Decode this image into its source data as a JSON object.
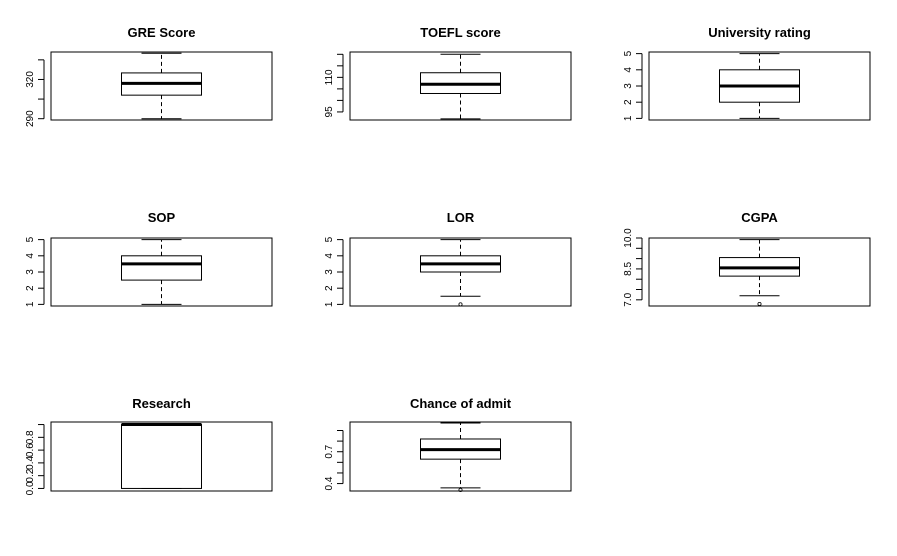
{
  "chart_data": [
    {
      "type": "box",
      "title": "GRE Score",
      "ylim": [
        289,
        341
      ],
      "ticks": [
        290,
        305,
        320,
        335
      ],
      "tick_labels": [
        "290",
        "",
        "320",
        ""
      ],
      "box": {
        "whisker_low": 290,
        "q1": 308,
        "median": 317,
        "q3": 325,
        "whisker_high": 340,
        "outliers": []
      }
    },
    {
      "type": "box",
      "title": "TOEFL score",
      "ylim": [
        91.5,
        121
      ],
      "ticks": [
        95,
        100,
        105,
        110,
        115,
        120
      ],
      "tick_labels": [
        "95",
        "",
        "",
        "110",
        "",
        ""
      ],
      "box": {
        "whisker_low": 92,
        "q1": 103,
        "median": 107,
        "q3": 112,
        "whisker_high": 120,
        "outliers": []
      }
    },
    {
      "type": "box",
      "title": "University rating",
      "ylim": [
        0.9,
        5.1
      ],
      "ticks": [
        1,
        2,
        3,
        4,
        5
      ],
      "tick_labels": [
        "1",
        "2",
        "3",
        "4",
        "5"
      ],
      "box": {
        "whisker_low": 1,
        "q1": 2,
        "median": 3,
        "q3": 4,
        "whisker_high": 5,
        "outliers": []
      }
    },
    {
      "type": "box",
      "title": "SOP",
      "ylim": [
        0.9,
        5.1
      ],
      "ticks": [
        1,
        2,
        3,
        4,
        5
      ],
      "tick_labels": [
        "1",
        "2",
        "3",
        "4",
        "5"
      ],
      "box": {
        "whisker_low": 1,
        "q1": 2.5,
        "median": 3.5,
        "q3": 4,
        "whisker_high": 5,
        "outliers": []
      }
    },
    {
      "type": "box",
      "title": "LOR",
      "ylim": [
        0.9,
        5.1
      ],
      "ticks": [
        1,
        2,
        3,
        4,
        5
      ],
      "tick_labels": [
        "1",
        "2",
        "3",
        "4",
        "5"
      ],
      "box": {
        "whisker_low": 1.5,
        "q1": 3,
        "median": 3.5,
        "q3": 4,
        "whisker_high": 5,
        "outliers": [
          1
        ]
      }
    },
    {
      "type": "box",
      "title": "CGPA",
      "ylim": [
        6.7,
        10.0
      ],
      "ticks": [
        7.0,
        7.5,
        8.0,
        8.5,
        9.0,
        9.5,
        10.0
      ],
      "tick_labels": [
        "7.0",
        "",
        "",
        "8.5",
        "",
        "",
        "10.0"
      ],
      "box": {
        "whisker_low": 7.2,
        "q1": 8.15,
        "median": 8.55,
        "q3": 9.05,
        "whisker_high": 9.92,
        "outliers": [
          6.8
        ]
      }
    },
    {
      "type": "box",
      "title": "Research",
      "ylim": [
        -0.04,
        1.04
      ],
      "ticks": [
        0.0,
        0.2,
        0.4,
        0.6,
        0.8,
        1.0
      ],
      "tick_labels": [
        "0.0",
        "0.2",
        "0.4",
        "0.6",
        "0.8",
        ""
      ],
      "box": {
        "whisker_low": 0,
        "q1": 0,
        "median": 1,
        "q3": 1,
        "whisker_high": 1,
        "outliers": []
      }
    },
    {
      "type": "box",
      "title": "Chance of admit",
      "ylim": [
        0.33,
        0.98
      ],
      "ticks": [
        0.4,
        0.5,
        0.6,
        0.7,
        0.8,
        0.9
      ],
      "tick_labels": [
        "0.4",
        "",
        "",
        "0.7",
        "",
        ""
      ],
      "box": {
        "whisker_low": 0.36,
        "q1": 0.63,
        "median": 0.72,
        "q3": 0.82,
        "whisker_high": 0.97,
        "outliers": [
          0.34
        ]
      }
    }
  ]
}
